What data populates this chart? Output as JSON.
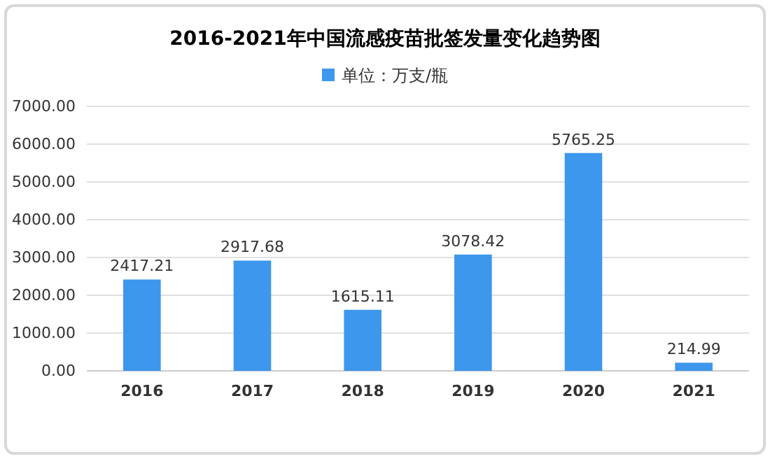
{
  "chart_data": {
    "type": "bar",
    "title": "2016-2021年中国流感疫苗批签发量变化趋势图",
    "categories": [
      "2016",
      "2017",
      "2018",
      "2019",
      "2020",
      "2021"
    ],
    "series": [
      {
        "name": "单位：万支/瓶",
        "color": "#3d97ec",
        "values": [
          2417.21,
          2917.68,
          1615.11,
          3078.42,
          5765.25,
          214.99
        ]
      }
    ],
    "ylim": [
      0,
      7000
    ],
    "yticks": [
      {
        "value": 0,
        "label": "0.00"
      },
      {
        "value": 1000,
        "label": "1000.00"
      },
      {
        "value": 2000,
        "label": "2000.00"
      },
      {
        "value": 3000,
        "label": "3000.00"
      },
      {
        "value": 4000,
        "label": "4000.00"
      },
      {
        "value": 5000,
        "label": "5000.00"
      },
      {
        "value": 6000,
        "label": "6000.00"
      },
      {
        "value": 7000,
        "label": "7000.00"
      }
    ],
    "grid": "y",
    "legend": "top",
    "data_labels": true
  }
}
